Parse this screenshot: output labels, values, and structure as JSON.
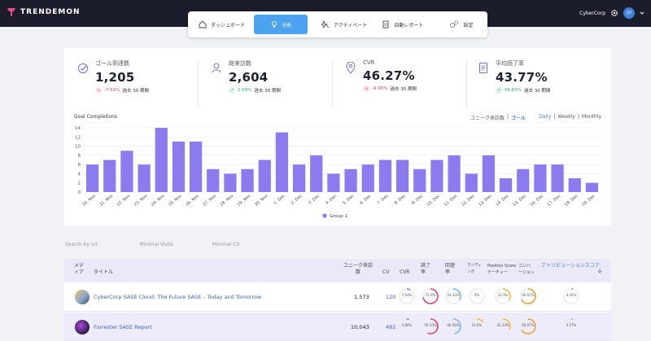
{
  "app": {
    "brand": "TRENDEMON",
    "org": "CyberCorp",
    "user_initials": "JO"
  },
  "nav": [
    {
      "label": "ダッシュボード",
      "icon": "home-icon"
    },
    {
      "label": "分析",
      "icon": "lightbulb-icon",
      "active": true
    },
    {
      "label": "アクティベート",
      "icon": "sparkle-icon"
    },
    {
      "label": "自動レポート",
      "icon": "report-icon"
    },
    {
      "label": "設定",
      "icon": "gears-icon"
    }
  ],
  "kpis": [
    {
      "label": "ゴール到達数",
      "value": "1,205",
      "change": "-7.52%",
      "trend": "down",
      "period": "過去 30 期間",
      "icon": "check-circle-icon"
    },
    {
      "label": "総来訪数",
      "value": "2,604",
      "change": "2.68%",
      "trend": "up",
      "period": "過去 30 期間",
      "icon": "person-icon"
    },
    {
      "label": "CVR",
      "value": "46.27%",
      "change": "-9.95%",
      "trend": "down",
      "period": "過去 30 期間",
      "icon": "location-pin-icon"
    },
    {
      "label": "平均読了率",
      "value": "43.77%",
      "change": "56.83%",
      "trend": "up",
      "period": "過去 30 期間",
      "icon": "document-icon"
    }
  ],
  "chart_controls": {
    "title": "Goal Completions",
    "unit_label": "ユニーク来訪数",
    "unit_value": "ゴール",
    "daily": "Daily",
    "weekly": "Weekly",
    "monthly": "Monthly"
  },
  "chart_data": {
    "type": "bar",
    "title": "Goal Completions",
    "categories": [
      "20. Nov",
      "21. Nov",
      "22. Nov",
      "23. Nov",
      "24. Nov",
      "25. Nov",
      "26. Nov",
      "27. Nov",
      "28. Nov",
      "29. Nov",
      "30. Nov",
      "1. Dec",
      "2. Dec",
      "3. Dec",
      "4. Dec",
      "5. Dec",
      "6. Dec",
      "7. Dec",
      "8. Dec",
      "9. Dec",
      "10. Dec",
      "11. Dec",
      "12. Dec",
      "13. Dec",
      "14. Dec",
      "15. Dec",
      "16. Dec",
      "17. Dec",
      "18. Dec",
      "19. Dec"
    ],
    "series": [
      {
        "name": "Group 1",
        "values": [
          6,
          7,
          9,
          6,
          14,
          11,
          11,
          5,
          4,
          5,
          7,
          13,
          6,
          8,
          4,
          5,
          6,
          7,
          7,
          5,
          7,
          8,
          4,
          8,
          3,
          5,
          6,
          6,
          3,
          2
        ]
      }
    ],
    "ylim": [
      0,
      14
    ],
    "yticks": [
      0,
      2,
      4,
      6,
      8,
      10,
      12,
      14
    ],
    "legend": "bottom",
    "color": "#8c7bef",
    "grid": true
  },
  "filters": [
    "Search by url..",
    "Minimal Visits",
    "Minimal CV"
  ],
  "table": {
    "headers": {
      "media": "メディア",
      "title": "タイトル",
      "unique": "ユニーク来訪数",
      "cv": "CV",
      "cvr": "CVR",
      "read": "読了率",
      "exit": "回遊率",
      "landing": "ランディング",
      "position": "Position Score テーチャー",
      "conversion": "コンバージョン",
      "attribution": "アトリビューションスコア"
    },
    "rows": [
      {
        "title": "CyberCorp SASE Cloud: The Future SASE – Today and Tomorrow",
        "unique": "1,573",
        "cv": "120",
        "rings": [
          "7.63%",
          "72.0%",
          "33.33%",
          "0%",
          "33.3%",
          "66.67%",
          "4.35%"
        ]
      },
      {
        "title": "Forrester SASE Report",
        "unique": "10,043",
        "cv": "482",
        "rings": [
          "4.80%",
          "56.33%",
          "46.56%",
          "15.6%",
          "32.33%",
          "66.67%",
          "3.17%"
        ]
      }
    ]
  }
}
